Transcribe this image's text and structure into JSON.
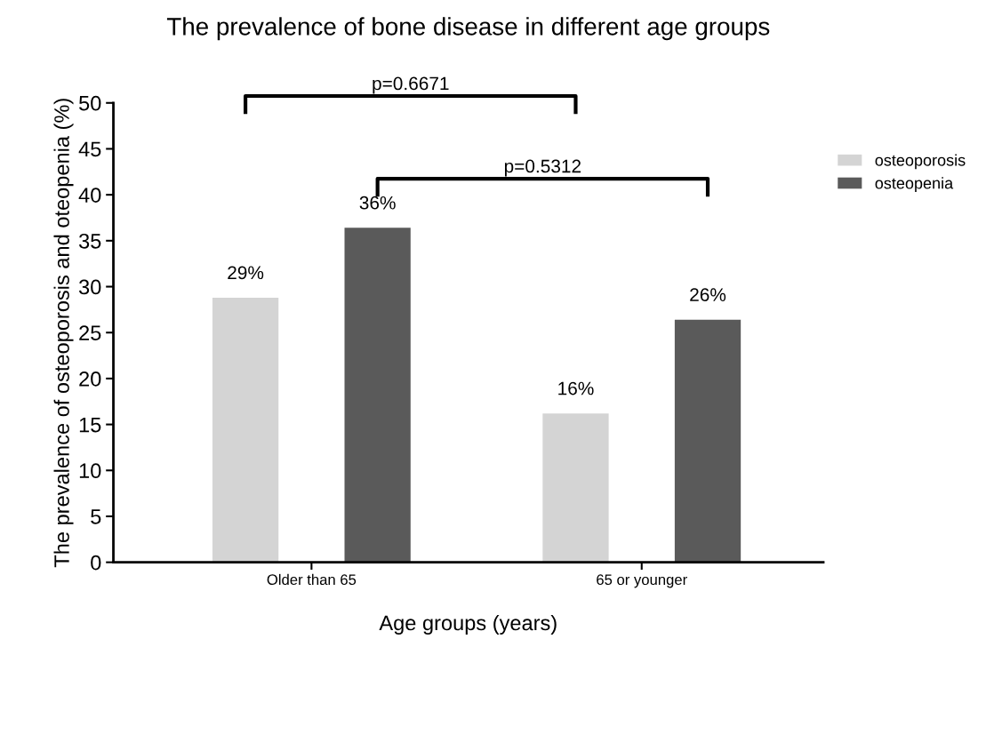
{
  "chart_data": {
    "type": "bar",
    "title": "The prevalence of bone disease in different age groups",
    "xlabel": "Age groups (years)",
    "ylabel": "The prevalence of osteoporosis and oteopenia (%)",
    "categories": [
      "Older than 65",
      "65 or younger"
    ],
    "series": [
      {
        "name": "osteoporosis",
        "color": "#d4d4d4",
        "values": [
          28.8,
          16.2
        ],
        "value_labels": [
          "29%",
          "16%"
        ]
      },
      {
        "name": "osteopenia",
        "color": "#5a5a5a",
        "values": [
          36.4,
          26.4
        ],
        "value_labels": [
          "36%",
          "26%"
        ]
      }
    ],
    "ylim": [
      0,
      50
    ],
    "yticks": [
      0,
      5,
      10,
      15,
      20,
      25,
      30,
      35,
      40,
      45,
      50
    ],
    "grid": false,
    "legend": "top right",
    "annotations": [
      "p=0.6671",
      "p=0.5312"
    ]
  }
}
